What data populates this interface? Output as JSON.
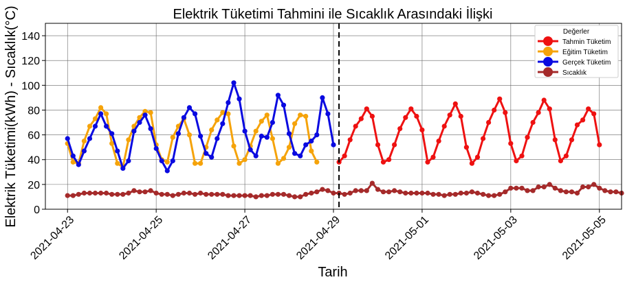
{
  "chart_data": {
    "type": "line",
    "title": "Elektrik Tüketimi Tahmini ile Sıcaklık Arasındaki İlişki",
    "xlabel": "Tarih",
    "ylabel": "Elektrik Tüketimi(kWh) - Sıcaklık(°C)",
    "ylim": [
      0,
      150
    ],
    "xlim": [
      "2021-04-22 12:00",
      "2021-05-05 12:00"
    ],
    "yticks": [
      0,
      20,
      40,
      60,
      80,
      100,
      120,
      140
    ],
    "xticks": [
      "2021-04-23",
      "2021-04-25",
      "2021-04-27",
      "2021-04-29",
      "2021-05-01",
      "2021-05-03",
      "2021-05-05"
    ],
    "grid": true,
    "legend_title": "Değerler",
    "legend_position": "top-right",
    "split_date": "2021-04-29 03:00",
    "series": [
      {
        "name": "Tahmin Tüketim",
        "color": "#ee1111",
        "start": "2021-04-29 03:00",
        "step_hours": 3,
        "values": [
          38,
          43,
          56,
          67,
          73,
          81,
          75,
          52,
          38,
          40,
          52,
          65,
          74,
          81,
          75,
          64,
          38,
          42,
          55,
          67,
          76,
          85,
          75,
          50,
          37,
          42,
          57,
          70,
          80,
          89,
          78,
          53,
          39,
          43,
          58,
          70,
          78,
          88,
          81,
          56,
          39,
          43,
          56,
          68,
          72,
          81,
          77,
          52
        ]
      },
      {
        "name": "Eğitim Tüketim",
        "color": "#f5a30a",
        "start": "2021-04-23 00:00",
        "step_hours": 3,
        "values": [
          53,
          38,
          37,
          55,
          67,
          73,
          82,
          77,
          53,
          37,
          34,
          56,
          67,
          74,
          79,
          78,
          52,
          40,
          38,
          58,
          67,
          73,
          60,
          37,
          37,
          50,
          64,
          72,
          78,
          77,
          51,
          37,
          40,
          51,
          63,
          71,
          76,
          57,
          37,
          41,
          50,
          69,
          76,
          75,
          47,
          38
        ]
      },
      {
        "name": "Gerçek Tüketim",
        "color": "#0a0ae0",
        "start": "2021-04-23 00:00",
        "step_hours": 3,
        "values": [
          57,
          43,
          36,
          47,
          57,
          67,
          77,
          67,
          61,
          47,
          33,
          39,
          63,
          70,
          76,
          65,
          49,
          39,
          31,
          39,
          61,
          74,
          82,
          77,
          59,
          45,
          42,
          57,
          69,
          86,
          102,
          89,
          63,
          48,
          43,
          59,
          58,
          70,
          92,
          84,
          61,
          45,
          43,
          52,
          55,
          60,
          90,
          77,
          52
        ]
      },
      {
        "name": "Sıcaklık",
        "color": "#a52a2a",
        "start": "2021-04-23 00:00",
        "step_hours": 3,
        "values": [
          11,
          11,
          12,
          13,
          13,
          13,
          13,
          13,
          12,
          12,
          12,
          13,
          15,
          14,
          14,
          15,
          13,
          12,
          12,
          11,
          12,
          13,
          13,
          12,
          13,
          12,
          12,
          12,
          12,
          11,
          11,
          11,
          11,
          11,
          10,
          11,
          11,
          12,
          12,
          12,
          11,
          10,
          10,
          12,
          13,
          14,
          16,
          15,
          13,
          13,
          12,
          13,
          15,
          15,
          15,
          21,
          16,
          14,
          14,
          15,
          14,
          13,
          13,
          13,
          13,
          13,
          12,
          12,
          11,
          12,
          12,
          13,
          13,
          14,
          13,
          12,
          11,
          11,
          12,
          14,
          17,
          17,
          17,
          15,
          15,
          18,
          18,
          20,
          17,
          15,
          14,
          14,
          13,
          18,
          18,
          20,
          17,
          15,
          14,
          14,
          13
        ]
      }
    ]
  }
}
